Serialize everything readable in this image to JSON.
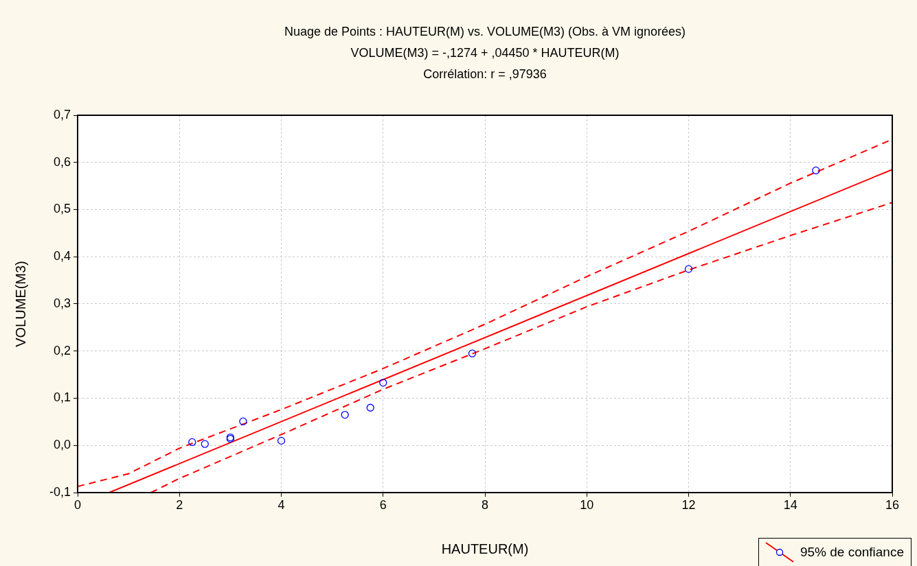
{
  "chart_data": {
    "type": "scatter",
    "title": "Nuage de Points : HAUTEUR(M) vs. VOLUME(M3) (Obs. à VM ignorées)",
    "subtitle": "VOLUME(M3) = -,1274 + ,04450 * HAUTEUR(M)",
    "annotations": [
      "Corrélation: r = ,97936"
    ],
    "xlabel": "HAUTEUR(M)",
    "ylabel": "VOLUME(M3)",
    "xlim": [
      0,
      16
    ],
    "xticks": [
      0,
      2,
      4,
      6,
      8,
      10,
      12,
      14,
      16
    ],
    "ylim": [
      -0.1,
      0.7
    ],
    "yticks": [
      {
        "value": -0.1,
        "label": "-0,1"
      },
      {
        "value": 0,
        "label": "0,0"
      },
      {
        "value": 0.1,
        "label": "0,1"
      },
      {
        "value": 0.2,
        "label": "0,2"
      },
      {
        "value": 0.3,
        "label": "0,3"
      },
      {
        "value": 0.4,
        "label": "0,4"
      },
      {
        "value": 0.5,
        "label": "0,5"
      },
      {
        "value": 0.6,
        "label": "0,6"
      },
      {
        "value": 0.7,
        "label": "0,7"
      }
    ],
    "grid": true,
    "legend": "bottom right",
    "series": [
      {
        "type": "scatter",
        "marker": "circle",
        "color": "#0000ff",
        "x": [
          2.25,
          2.5,
          3,
          3,
          3.25,
          4,
          5.25,
          5.75,
          6,
          7.75,
          12,
          14.5
        ],
        "values": [
          0.007,
          0.003,
          0.017,
          0.014,
          0.051,
          0.01,
          0.065,
          0.08,
          0.133,
          0.195,
          0.374,
          0.583
        ]
      },
      {
        "type": "line",
        "name": "95% de confiance",
        "line_style": "solid",
        "color": "#ff0000",
        "x": [
          0.62,
          16
        ],
        "values": [
          -0.1,
          0.585
        ]
      },
      {
        "type": "line",
        "line_style": "dashed",
        "color": "#ff0000",
        "x": [
          0,
          1,
          2,
          4,
          6,
          8,
          10,
          12,
          14,
          16
        ],
        "values": [
          -0.087,
          -0.06,
          -0.006,
          0.076,
          0.163,
          0.257,
          0.358,
          0.454,
          0.556,
          0.649
        ]
      },
      {
        "type": "line",
        "line_style": "dashed",
        "color": "#ff0000",
        "x": [
          1.44,
          2,
          4,
          6,
          8,
          10,
          12,
          14,
          16
        ],
        "values": [
          -0.1,
          -0.07,
          0.023,
          0.119,
          0.205,
          0.294,
          0.372,
          0.445,
          0.515
        ]
      }
    ]
  }
}
